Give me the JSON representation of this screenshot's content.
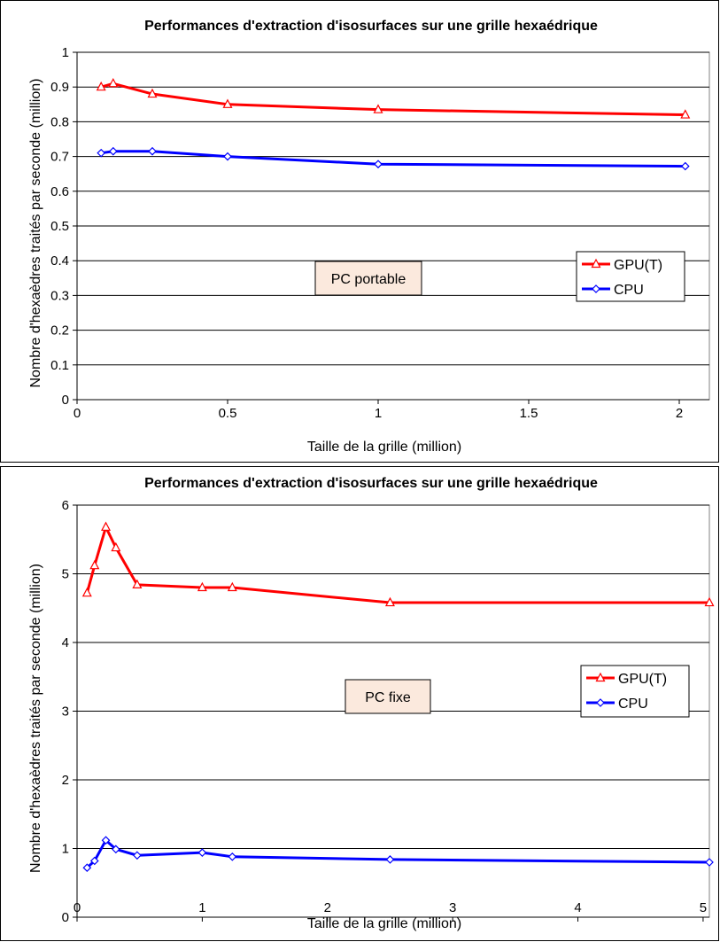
{
  "chart_data": [
    {
      "type": "line",
      "title": "Performances d'extraction d'isosurfaces sur une grille hexaédrique",
      "xlabel": "Taille de la grille (million)",
      "ylabel": "Nombre d'hexaèdres traités par seconde (million)",
      "xlim": [
        0,
        2.1
      ],
      "ylim": [
        0,
        1
      ],
      "xticks": [
        0,
        0.5,
        1,
        1.5,
        2
      ],
      "xtick_labels": [
        "0",
        "0.5",
        "1",
        "1.5",
        "2"
      ],
      "yticks": [
        0,
        0.1,
        0.2,
        0.3,
        0.4,
        0.5,
        0.6,
        0.7,
        0.8,
        0.9,
        1
      ],
      "ytick_labels": [
        "0",
        "0.1",
        "0.2",
        "0.3",
        "0.4",
        "0.5",
        "0.6",
        "0.7",
        "0.8",
        "0.9",
        "1"
      ],
      "grid": "horizontal",
      "legend_position": "right",
      "annotation": "PC portable",
      "series": [
        {
          "name": "GPU(T)",
          "color": "#ff0000",
          "marker": "triangle",
          "x": [
            0.08,
            0.12,
            0.25,
            0.5,
            1.0,
            2.02
          ],
          "y": [
            0.9,
            0.91,
            0.88,
            0.85,
            0.835,
            0.82
          ]
        },
        {
          "name": "CPU",
          "color": "#0000ff",
          "marker": "diamond",
          "x": [
            0.08,
            0.12,
            0.25,
            0.5,
            1.0,
            2.02
          ],
          "y": [
            0.71,
            0.715,
            0.715,
            0.7,
            0.678,
            0.672
          ]
        }
      ]
    },
    {
      "type": "line",
      "title": "Performances d'extraction d'isosurfaces sur une grille hexaédrique",
      "xlabel": "Taille de la grille  (million)",
      "ylabel": "Nombre d'hexaèdres traités par seconde (million)",
      "xlim": [
        0,
        5.05
      ],
      "ylim": [
        0,
        6
      ],
      "xticks": [
        0,
        1,
        2,
        3,
        4,
        5
      ],
      "xtick_labels": [
        "0",
        "1",
        "2",
        "3",
        "4",
        "5"
      ],
      "yticks": [
        0,
        1,
        2,
        3,
        4,
        5,
        6
      ],
      "ytick_labels": [
        "0",
        "1",
        "2",
        "3",
        "4",
        "5",
        "6"
      ],
      "grid": "horizontal",
      "legend_position": "right",
      "annotation": "PC fixe",
      "series": [
        {
          "name": "GPU(T)",
          "color": "#ff0000",
          "marker": "triangle",
          "x": [
            0.08,
            0.14,
            0.23,
            0.31,
            0.48,
            1.0,
            1.24,
            2.5,
            5.05
          ],
          "y": [
            4.72,
            5.12,
            5.68,
            5.38,
            4.84,
            4.8,
            4.8,
            4.58,
            4.58
          ]
        },
        {
          "name": "CPU",
          "color": "#0000ff",
          "marker": "diamond",
          "x": [
            0.08,
            0.14,
            0.23,
            0.31,
            0.48,
            1.0,
            1.24,
            2.5,
            5.05
          ],
          "y": [
            0.72,
            0.82,
            1.12,
            0.99,
            0.9,
            0.94,
            0.88,
            0.84,
            0.8
          ]
        }
      ]
    }
  ]
}
